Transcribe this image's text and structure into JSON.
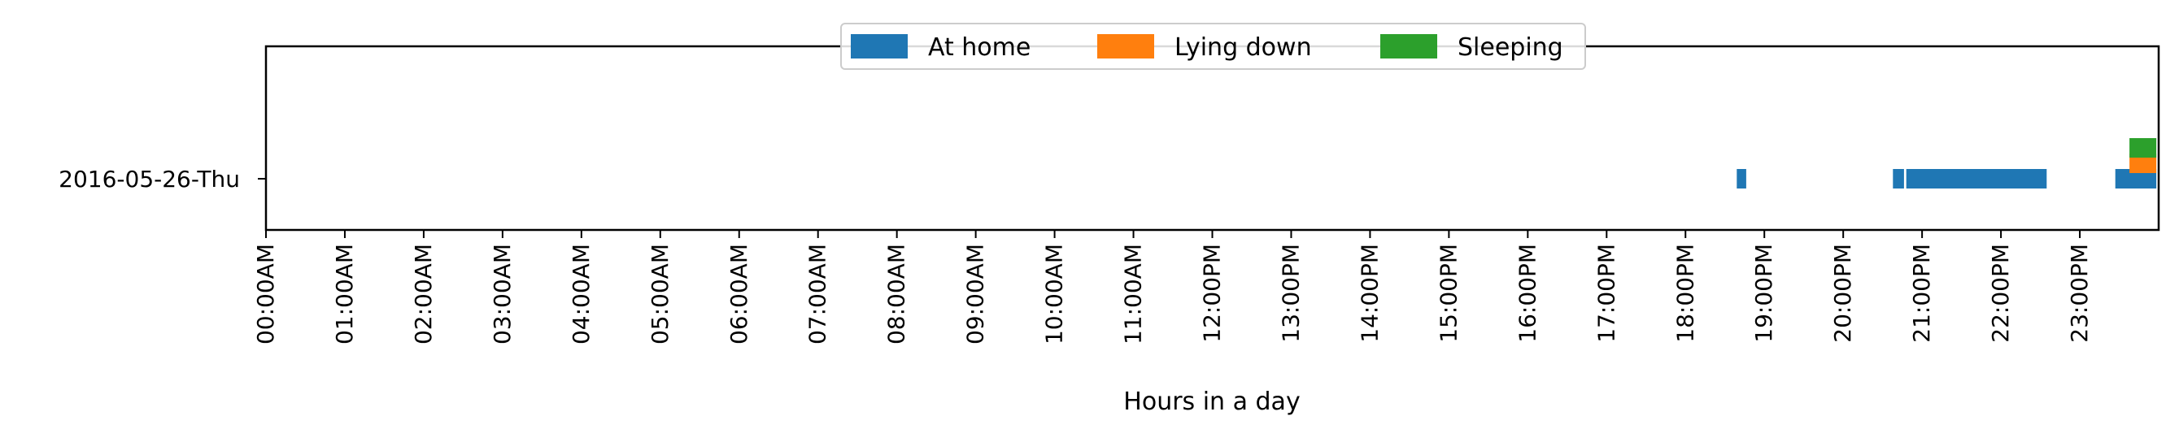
{
  "chart_data": {
    "type": "timeline",
    "title": "",
    "xlabel": "Hours in a day",
    "ylabel": "",
    "xlim": [
      0,
      24
    ],
    "categories": [
      "2016-05-26-Thu"
    ],
    "xtick_labels": [
      "00:00AM",
      "01:00AM",
      "02:00AM",
      "03:00AM",
      "04:00AM",
      "05:00AM",
      "06:00AM",
      "07:00AM",
      "08:00AM",
      "09:00AM",
      "10:00AM",
      "11:00AM",
      "12:00PM",
      "13:00PM",
      "14:00PM",
      "15:00PM",
      "16:00PM",
      "17:00PM",
      "18:00PM",
      "19:00PM",
      "20:00PM",
      "21:00PM",
      "22:00PM",
      "23:00PM"
    ],
    "legend_placement": "top-center",
    "grid": false,
    "series": [
      {
        "name": "At home",
        "color": "#1f77b4",
        "intervals": [
          [
            18.65,
            18.77
          ],
          [
            20.63,
            20.77
          ],
          [
            20.8,
            22.58
          ],
          [
            23.45,
            23.97
          ]
        ]
      },
      {
        "name": "Lying down",
        "color": "#ff7f0e",
        "intervals": [
          [
            23.63,
            23.97
          ]
        ]
      },
      {
        "name": "Sleeping",
        "color": "#2ca02c",
        "intervals": [
          [
            23.63,
            23.97
          ]
        ]
      }
    ]
  }
}
